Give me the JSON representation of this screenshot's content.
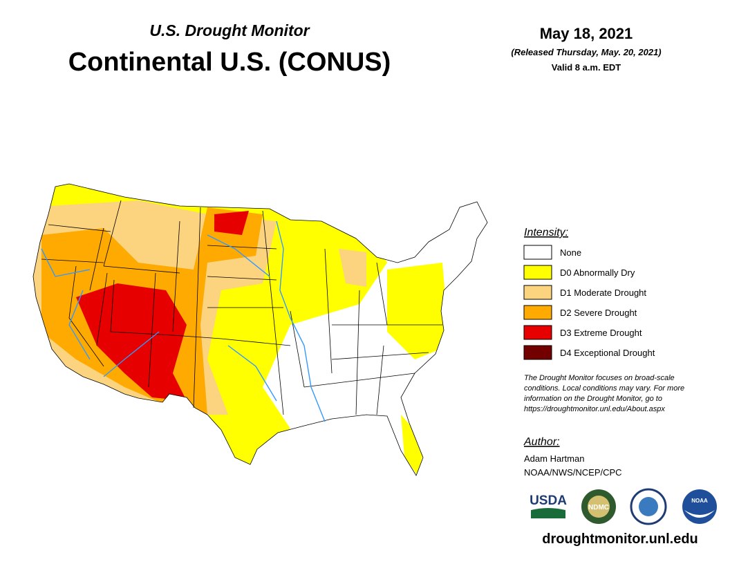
{
  "header": {
    "subtitle": "U.S. Drought Monitor",
    "title": "Continental U.S. (CONUS)",
    "date": "May 18, 2021",
    "released": "(Released Thursday, May. 20, 2021)",
    "valid": "Valid 8 a.m. EDT"
  },
  "legend": {
    "title": "Intensity:",
    "items": [
      {
        "label": "None",
        "color": "#ffffff"
      },
      {
        "label": "D0 Abnormally Dry",
        "color": "#ffff00"
      },
      {
        "label": "D1 Moderate Drought",
        "color": "#fcd37f"
      },
      {
        "label": "D2 Severe Drought",
        "color": "#ffaa00"
      },
      {
        "label": "D3 Extreme Drought",
        "color": "#e60000"
      },
      {
        "label": "D4 Exceptional Drought",
        "color": "#730000"
      }
    ]
  },
  "note": [
    "The Drought Monitor focuses on broad-scale",
    "conditions. Local conditions may vary. For more",
    "information on the Drought Monitor, go to",
    "https://droughtmonitor.unl.edu/About.aspx"
  ],
  "author": {
    "title": "Author:",
    "name": "Adam Hartman",
    "affiliation": "NOAA/NWS/NCEP/CPC"
  },
  "logos": [
    "USDA",
    "NDMC",
    "NOAA"
  ],
  "footer": "droughtmonitor.unl.edu"
}
